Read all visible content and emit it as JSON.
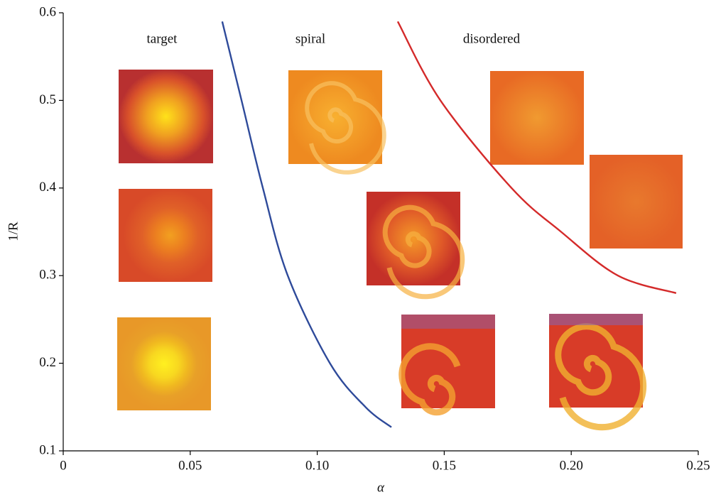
{
  "chart_data": {
    "type": "line",
    "xlabel": "α",
    "ylabel": "1/R",
    "annotations": [
      "target",
      "spiral",
      "disordered"
    ],
    "xlim": [
      0,
      0.25
    ],
    "xticks": [
      0,
      0.05,
      {
        "value": 0.1,
        "label": "0.10"
      },
      0.15,
      {
        "value": 0.2,
        "label": "0.20"
      },
      0.25
    ],
    "ylim": [
      0.1,
      0.6
    ],
    "yticks": [
      0.1,
      0.2,
      0.3,
      0.4,
      0.5,
      0.6
    ],
    "grid": false,
    "series": [
      {
        "color": "#2e4a9a",
        "x": [
          0.0626,
          0.0702,
          0.0786,
          0.0884,
          0.105,
          0.119,
          0.1292
        ],
        "values": [
          0.59,
          0.5,
          0.4,
          0.3,
          0.2,
          0.15,
          0.127
        ]
      },
      {
        "color": "#d42a2a",
        "x": [
          0.1317,
          0.1485,
          0.1765,
          0.196,
          0.2184,
          0.2413
        ],
        "values": [
          0.59,
          0.5,
          0.4,
          0.35,
          0.3,
          0.28
        ]
      }
    ]
  }
}
